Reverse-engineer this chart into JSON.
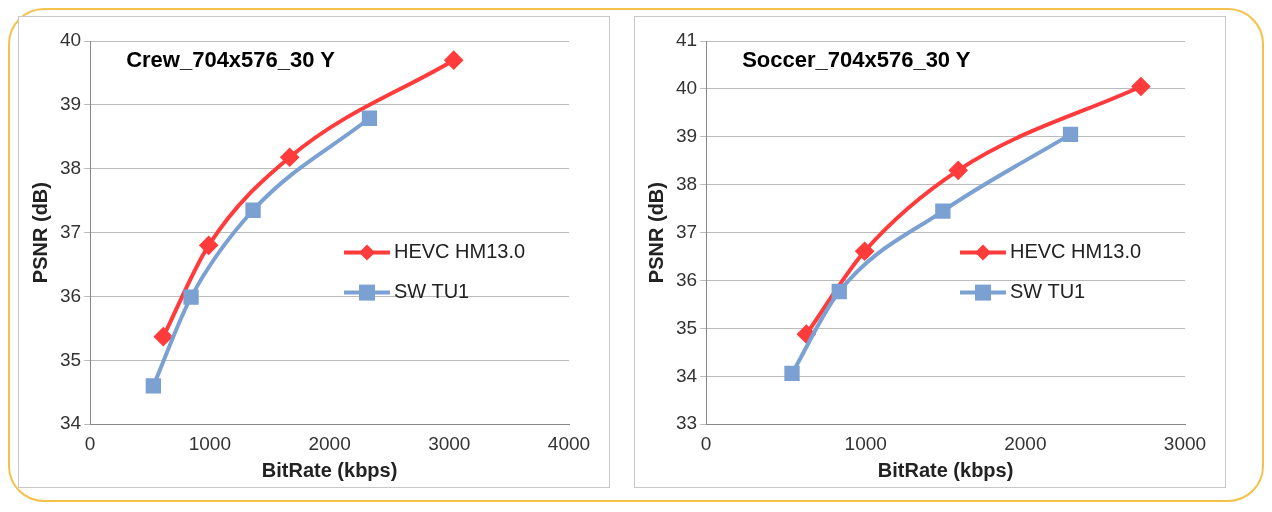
{
  "chart_data": [
    {
      "type": "line",
      "title": "Crew_704x576_30 Y",
      "xlabel": "BitRate (kbps)",
      "ylabel": "PSNR (dB)",
      "xlim": [
        0,
        4000
      ],
      "xticks": [
        0,
        1000,
        2000,
        3000,
        4000
      ],
      "ylim": [
        34,
        40
      ],
      "yticks": [
        34,
        35,
        36,
        37,
        38,
        39,
        40
      ],
      "grid": "y",
      "legend": "right",
      "line_style": "solid",
      "series": [
        {
          "name": "HEVC HM13.0",
          "color": "#ff3b3b",
          "marker": "diamond",
          "x": [
            611,
            990,
            1667,
            3037
          ],
          "values": [
            35.37,
            36.8,
            38.18,
            39.7
          ]
        },
        {
          "name": "SW TU1",
          "color": "#7ba0d2",
          "marker": "square",
          "x": [
            528,
            843,
            1361,
            2333
          ],
          "values": [
            34.6,
            35.99,
            37.35,
            38.79
          ]
        }
      ]
    },
    {
      "type": "line",
      "title": "Soccer_704x576_30 Y",
      "xlabel": "BitRate (kbps)",
      "ylabel": "PSNR (dB)",
      "xlim": [
        0,
        3000
      ],
      "xticks": [
        0,
        1000,
        2000,
        3000
      ],
      "ylim": [
        33,
        41
      ],
      "yticks": [
        33,
        34,
        35,
        36,
        37,
        38,
        39,
        40,
        41
      ],
      "grid": "y",
      "legend": "right",
      "line_style": "solid",
      "series": [
        {
          "name": "HEVC HM13.0",
          "color": "#ff3b3b",
          "marker": "diamond",
          "x": [
            628,
            993,
            1579,
            2283,
            2724
          ],
          "values": [
            34.88,
            36.61,
            38.3,
            null,
            40.05
          ]
        },
        {
          "name": "SW TU1",
          "color": "#7ba0d2",
          "marker": "square",
          "x": [
            538,
            834,
            1483,
            2283
          ],
          "values": [
            34.06,
            35.77,
            37.45,
            39.05
          ]
        }
      ]
    }
  ]
}
